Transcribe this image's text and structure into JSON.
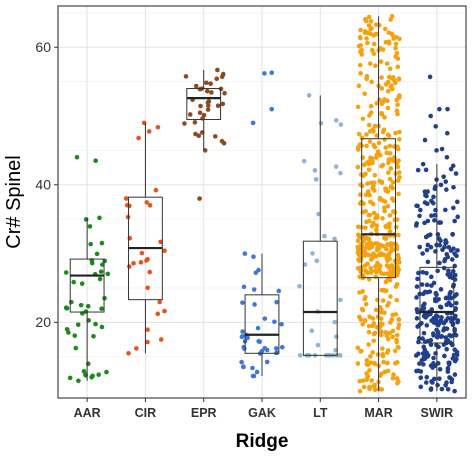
{
  "chart_data": {
    "type": "box-jitter",
    "xlabel": "Ridge",
    "ylabel": "Cr# Spinel",
    "ylim": [
      9,
      66
    ],
    "yticks": [
      20,
      40,
      60
    ],
    "grid": true,
    "categories": [
      "AAR",
      "CIR",
      "EPR",
      "GAK",
      "LT",
      "MAR",
      "SWIR"
    ],
    "colors": {
      "AAR": "#1b8a1b",
      "CIR": "#e8521b",
      "EPR": "#8c4a22",
      "GAK": "#3f77d4",
      "LT": "#8fb4d8",
      "MAR": "#f5a20e",
      "SWIR": "#213f8c"
    },
    "boxes": [
      {
        "category": "AAR",
        "min": 11.5,
        "q1": 21.5,
        "median": 26.8,
        "q3": 29.2,
        "max": 35.2
      },
      {
        "category": "CIR",
        "min": 15.5,
        "q1": 23.3,
        "median": 30.8,
        "q3": 38.2,
        "max": 49.0
      },
      {
        "category": "EPR",
        "min": 45.0,
        "q1": 49.5,
        "median": 52.6,
        "q3": 54.0,
        "max": 56.7
      },
      {
        "category": "GAK",
        "min": 12.2,
        "q1": 15.5,
        "median": 18.2,
        "q3": 24.0,
        "max": 30.0
      },
      {
        "category": "LT",
        "min": 15.2,
        "q1": 15.2,
        "median": 21.5,
        "q3": 31.8,
        "max": 53.0
      },
      {
        "category": "MAR",
        "min": 10.0,
        "q1": 26.5,
        "median": 32.8,
        "q3": 46.7,
        "max": 64.5
      },
      {
        "category": "SWIR",
        "min": 10.0,
        "q1": 17.0,
        "median": 21.5,
        "q3": 28.0,
        "max": 43.0
      }
    ],
    "outliers": {
      "AAR": [
        43.5,
        44.0
      ],
      "EPR": [
        38.0
      ],
      "GAK": [
        49.0,
        51.0,
        56.2,
        56.3
      ],
      "SWIR": [
        55.7,
        51.0,
        51.0,
        50.0,
        48.5,
        47.5,
        46.5,
        45.2,
        45.0,
        44.0
      ]
    },
    "point_counts": {
      "AAR": 45,
      "CIR": 30,
      "EPR": 35,
      "GAK": 40,
      "LT": 35,
      "MAR": 520,
      "SWIR": 280
    }
  }
}
